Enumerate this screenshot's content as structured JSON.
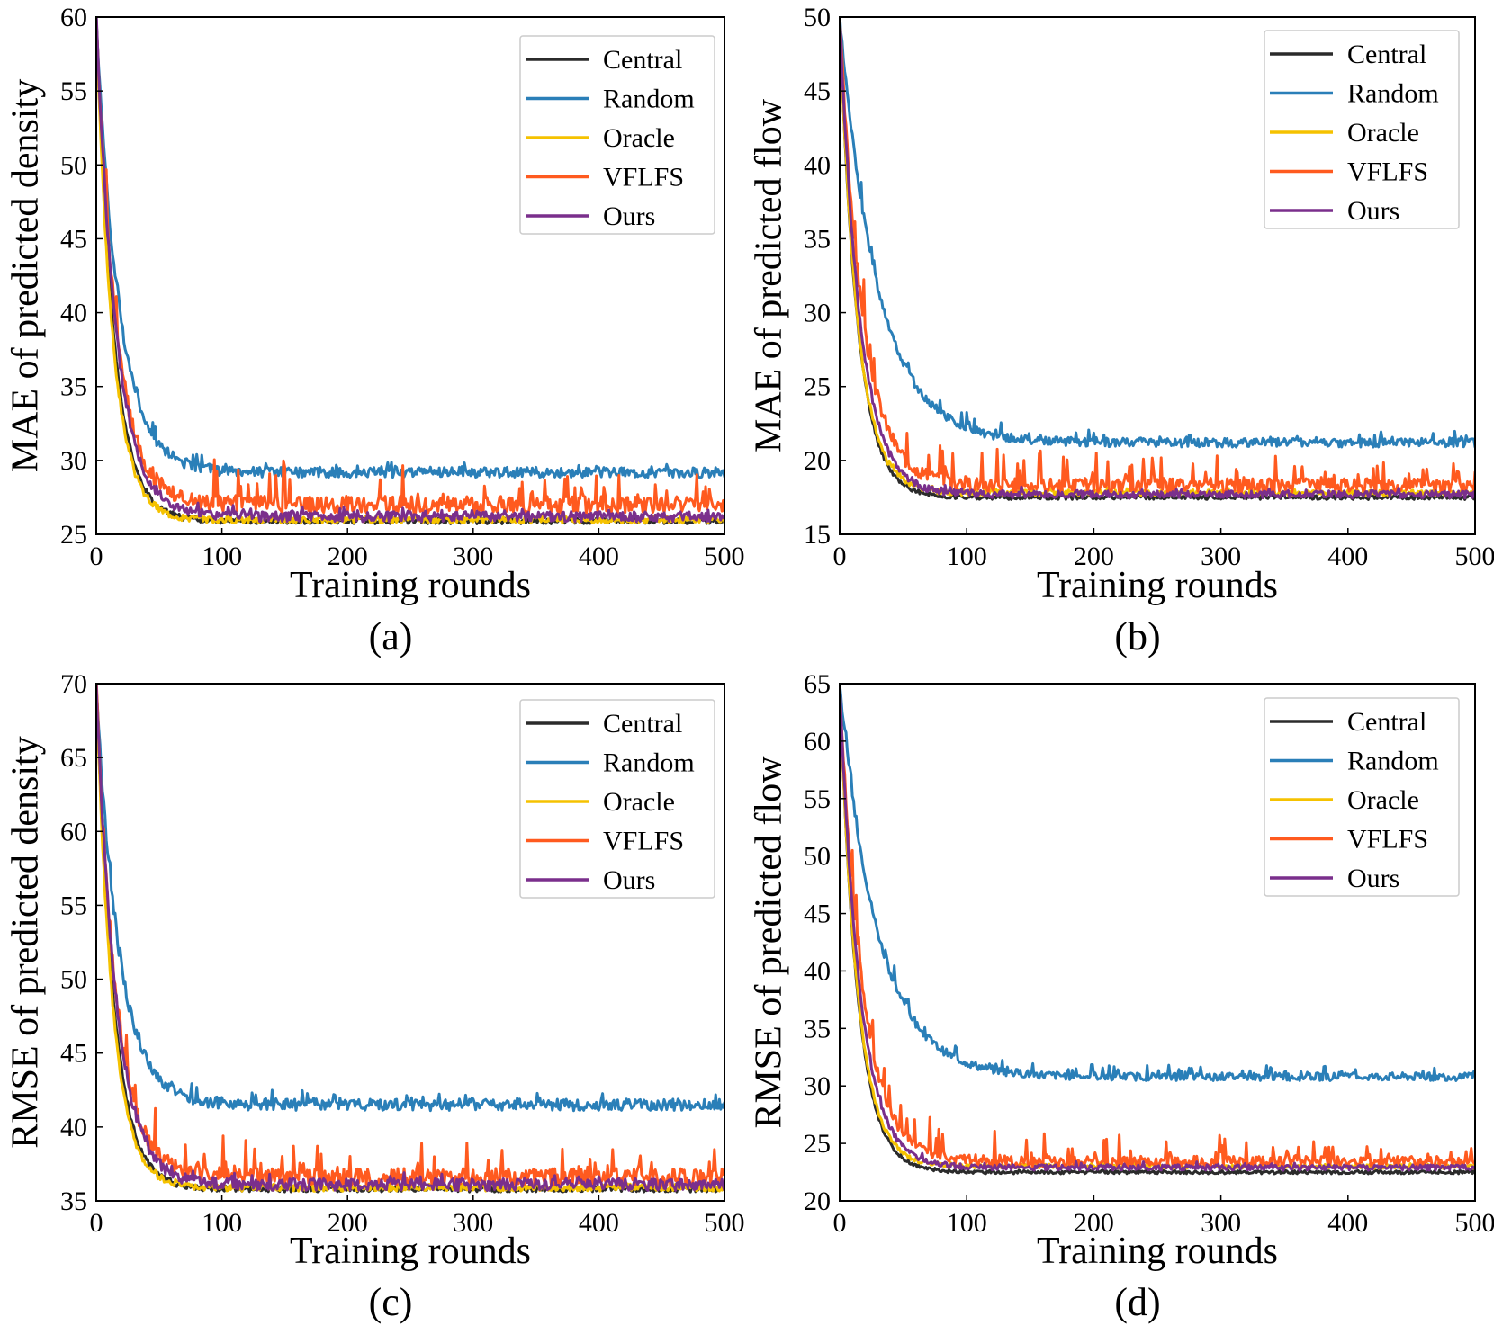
{
  "chart_data": [
    {
      "id": "a",
      "type": "line",
      "caption": "(a)",
      "xlabel": "Training rounds",
      "ylabel": "MAE of predicted density",
      "xlim": [
        0,
        500
      ],
      "ylim": [
        25,
        60
      ],
      "xticks": [
        0,
        100,
        200,
        300,
        400,
        500
      ],
      "yticks": [
        25,
        30,
        35,
        40,
        45,
        50,
        55,
        60
      ],
      "legend": "top-right",
      "series": [
        {
          "name": "Central",
          "color": "#2b2b2b",
          "start": 60,
          "end": 25.9,
          "decay": 14,
          "noise": 0.2,
          "spikes": 0.05,
          "seed": 1
        },
        {
          "name": "Random",
          "color": "#2a7fb8",
          "start": 60,
          "end": 29.2,
          "decay": 18,
          "noise": 0.35,
          "spikes": 0.8,
          "seed": 2
        },
        {
          "name": "Oracle",
          "color": "#f5c200",
          "start": 60,
          "end": 26.0,
          "decay": 13,
          "noise": 0.25,
          "spikes": 0.1,
          "seed": 3
        },
        {
          "name": "VFLFS",
          "color": "#ff5a1f",
          "start": 60,
          "end": 27.0,
          "decay": 16,
          "noise": 0.6,
          "spikes": 3.5,
          "seed": 4
        },
        {
          "name": "Ours",
          "color": "#7a2f8c",
          "start": 60,
          "end": 26.2,
          "decay": 16,
          "noise": 0.35,
          "spikes": 0.6,
          "seed": 5
        }
      ]
    },
    {
      "id": "b",
      "type": "line",
      "caption": "(b)",
      "xlabel": "Training rounds",
      "ylabel": "MAE of predicted flow",
      "xlim": [
        0,
        500
      ],
      "ylim": [
        15,
        50
      ],
      "xticks": [
        0,
        100,
        200,
        300,
        400,
        500
      ],
      "yticks": [
        15,
        20,
        25,
        30,
        35,
        40,
        45,
        50
      ],
      "legend": "top-right",
      "series": [
        {
          "name": "Central",
          "color": "#2b2b2b",
          "start": 50,
          "end": 17.5,
          "decay": 14,
          "noise": 0.15,
          "spikes": 0.05,
          "seed": 11
        },
        {
          "name": "Random",
          "color": "#2a7fb8",
          "start": 50,
          "end": 21.2,
          "decay": 30,
          "noise": 0.3,
          "spikes": 1.2,
          "seed": 12
        },
        {
          "name": "Oracle",
          "color": "#f5c200",
          "start": 50,
          "end": 17.8,
          "decay": 14,
          "noise": 0.2,
          "spikes": 0.3,
          "seed": 13
        },
        {
          "name": "VFLFS",
          "color": "#ff5a1f",
          "start": 50,
          "end": 18.3,
          "decay": 18,
          "noise": 0.5,
          "spikes": 3.5,
          "seed": 14
        },
        {
          "name": "Ours",
          "color": "#7a2f8c",
          "start": 50,
          "end": 17.7,
          "decay": 16,
          "noise": 0.25,
          "spikes": 0.4,
          "seed": 15
        }
      ]
    },
    {
      "id": "c",
      "type": "line",
      "caption": "(c)",
      "xlabel": "Training rounds",
      "ylabel": "RMSE of predicted density",
      "xlim": [
        0,
        500
      ],
      "ylim": [
        35,
        70
      ],
      "xticks": [
        0,
        100,
        200,
        300,
        400,
        500
      ],
      "yticks": [
        35,
        40,
        45,
        50,
        55,
        60,
        65,
        70
      ],
      "legend": "top-right",
      "series": [
        {
          "name": "Central",
          "color": "#2b2b2b",
          "start": 70,
          "end": 35.8,
          "decay": 14,
          "noise": 0.2,
          "spikes": 0.05,
          "seed": 21
        },
        {
          "name": "Random",
          "color": "#2a7fb8",
          "start": 70,
          "end": 41.5,
          "decay": 18,
          "noise": 0.4,
          "spikes": 1.3,
          "seed": 22
        },
        {
          "name": "Oracle",
          "color": "#f5c200",
          "start": 70,
          "end": 35.9,
          "decay": 13,
          "noise": 0.25,
          "spikes": 0.1,
          "seed": 23
        },
        {
          "name": "VFLFS",
          "color": "#ff5a1f",
          "start": 70,
          "end": 36.6,
          "decay": 16,
          "noise": 0.6,
          "spikes": 3.5,
          "seed": 24
        },
        {
          "name": "Ours",
          "color": "#7a2f8c",
          "start": 70,
          "end": 36.1,
          "decay": 16,
          "noise": 0.4,
          "spikes": 0.8,
          "seed": 25
        }
      ]
    },
    {
      "id": "d",
      "type": "line",
      "caption": "(d)",
      "xlabel": "Training rounds",
      "ylabel": "RMSE of predicted flow",
      "xlim": [
        0,
        500
      ],
      "ylim": [
        20,
        65
      ],
      "xticks": [
        0,
        100,
        200,
        300,
        400,
        500
      ],
      "yticks": [
        20,
        25,
        30,
        35,
        40,
        45,
        50,
        55,
        60,
        65
      ],
      "legend": "top-right",
      "series": [
        {
          "name": "Central",
          "color": "#2b2b2b",
          "start": 65,
          "end": 22.5,
          "decay": 14,
          "noise": 0.15,
          "spikes": 0.05,
          "seed": 31
        },
        {
          "name": "Random",
          "color": "#2a7fb8",
          "start": 65,
          "end": 30.8,
          "decay": 30,
          "noise": 0.35,
          "spikes": 1.5,
          "seed": 32
        },
        {
          "name": "Oracle",
          "color": "#f5c200",
          "start": 65,
          "end": 23.0,
          "decay": 14,
          "noise": 0.2,
          "spikes": 0.3,
          "seed": 33
        },
        {
          "name": "VFLFS",
          "color": "#ff5a1f",
          "start": 65,
          "end": 23.4,
          "decay": 18,
          "noise": 0.5,
          "spikes": 3.5,
          "seed": 34
        },
        {
          "name": "Ours",
          "color": "#7a2f8c",
          "start": 65,
          "end": 22.9,
          "decay": 16,
          "noise": 0.25,
          "spikes": 0.5,
          "seed": 35
        }
      ]
    }
  ]
}
